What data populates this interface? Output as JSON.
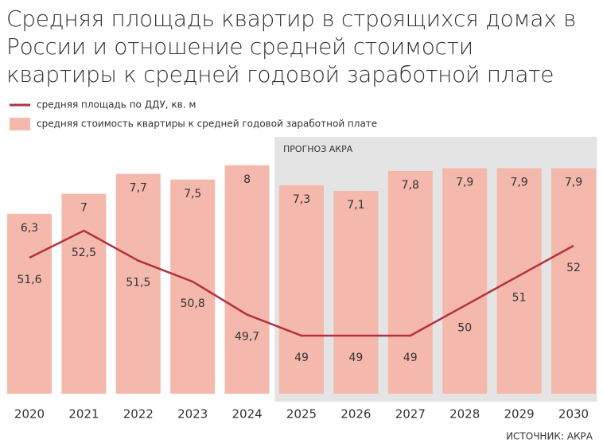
{
  "chart_data": {
    "type": "bar",
    "title": "Средняя площадь квартир в строящихся домах в России и отношение средней стоимости квартиры к средней годовой заработной плате",
    "categories": [
      "2020",
      "2021",
      "2022",
      "2023",
      "2024",
      "2025",
      "2026",
      "2027",
      "2028",
      "2029",
      "2030"
    ],
    "series": [
      {
        "name": "средняя площадь по ДДУ, кв. м",
        "type": "line",
        "color": "#b3323c",
        "values": [
          51.6,
          52.5,
          51.5,
          50.8,
          49.7,
          49,
          49,
          49,
          50,
          51,
          52
        ],
        "value_labels": [
          "51,6",
          "52,5",
          "51,5",
          "50,8",
          "49,7",
          "49",
          "49",
          "49",
          "50",
          "51",
          "52"
        ]
      },
      {
        "name": "средняя стоимость квартиры к средней годовой заработной плате",
        "type": "bar",
        "color": "#f5b8ad",
        "values": [
          6.3,
          7,
          7.7,
          7.5,
          8,
          7.3,
          7.1,
          7.8,
          7.9,
          7.9,
          7.9
        ],
        "value_labels": [
          "6,3",
          "7",
          "7,7",
          "7,5",
          "8",
          "7,3",
          "7,1",
          "7,8",
          "7,9",
          "7,9",
          "7,9"
        ]
      }
    ],
    "forecast_label": "ПРОГНОЗ АКРА",
    "source": "ИСТОЧНИК: АКРА"
  }
}
